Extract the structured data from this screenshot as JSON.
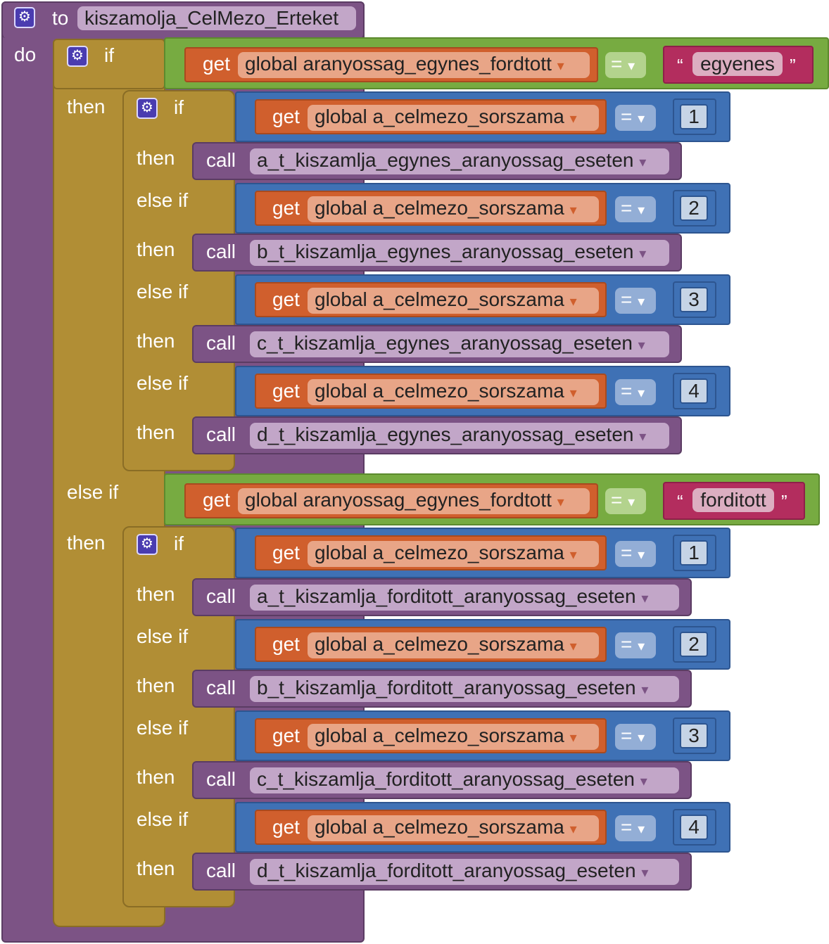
{
  "procedure": {
    "to_label": "to",
    "name": "kiszamolja_CelMezo_Erteket",
    "do_label": "do"
  },
  "keywords": {
    "if": "if",
    "then": "then",
    "else_if": "else if",
    "get": "get",
    "call": "call",
    "eq": "=",
    "open_quote": "“",
    "close_quote": "”",
    "dropdown": "▾"
  },
  "outer": {
    "var": "global aranyossag_egynes_fordtott",
    "branches": [
      {
        "string": "egyenes",
        "inner": {
          "var": "global a_celmezo_sorszama",
          "cases": [
            {
              "n": "1",
              "proc": "a_t_kiszamlja_egynes_aranyossag_eseten"
            },
            {
              "n": "2",
              "proc": "b_t_kiszamlja_egynes_aranyossag_eseten"
            },
            {
              "n": "3",
              "proc": "c_t_kiszamlja_egynes_aranyossag_eseten"
            },
            {
              "n": "4",
              "proc": "d_t_kiszamlja_egynes_aranyossag_eseten"
            }
          ]
        }
      },
      {
        "string": "forditott",
        "inner": {
          "var": "global a_celmezo_sorszama",
          "cases": [
            {
              "n": "1",
              "proc": "a_t_kiszamlja_forditott_aranyossag_eseten"
            },
            {
              "n": "2",
              "proc": "b_t_kiszamlja_forditott_aranyossag_eseten"
            },
            {
              "n": "3",
              "proc": "c_t_kiszamlja_forditott_aranyossag_eseten"
            },
            {
              "n": "4",
              "proc": "d_t_kiszamlja_forditott_aranyossag_eseten"
            }
          ]
        }
      }
    ]
  },
  "icons": {
    "mutator": "gear-icon",
    "dropdown": "chevron-down-icon"
  },
  "colors": {
    "procedure": "#7c5385",
    "control": "#b18e35",
    "compare": "#3f71b5",
    "logic": "#77ab41",
    "variable": "#d05f2d",
    "text": "#b32d5e"
  }
}
